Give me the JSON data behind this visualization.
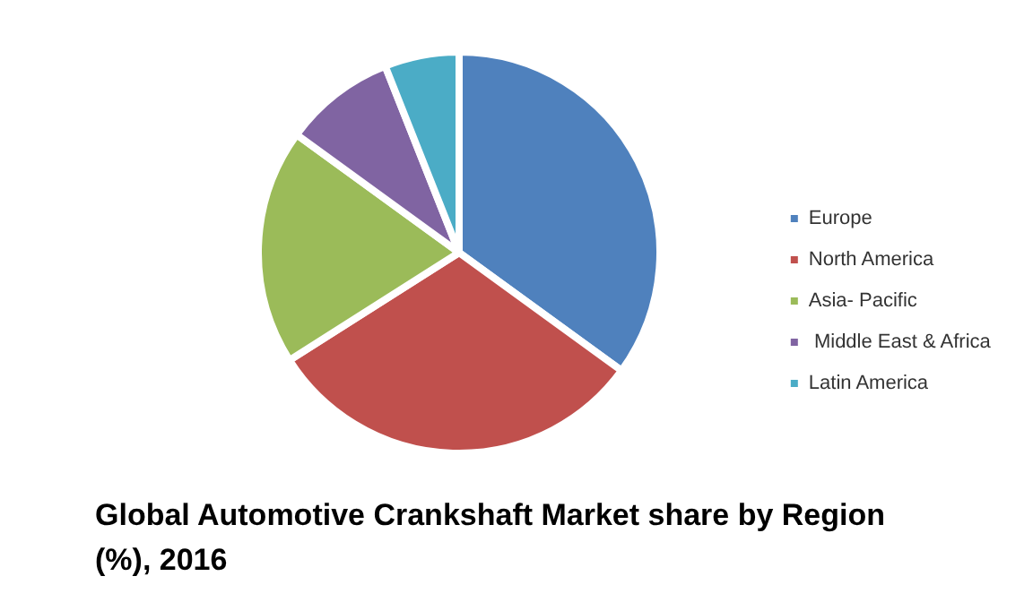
{
  "chart_data": {
    "type": "pie",
    "title": "Global Automotive Crankshaft Market share by Region (%), 2016",
    "categories": [
      "Europe",
      "North America",
      "Asia- Pacific",
      " Middle East & Africa",
      "Latin America"
    ],
    "values": [
      35,
      31,
      19,
      9,
      6
    ],
    "colors": [
      "#4f81bd",
      "#c0504d",
      "#9bbb59",
      "#8064a2",
      "#4bacc6"
    ],
    "legend": "right"
  }
}
